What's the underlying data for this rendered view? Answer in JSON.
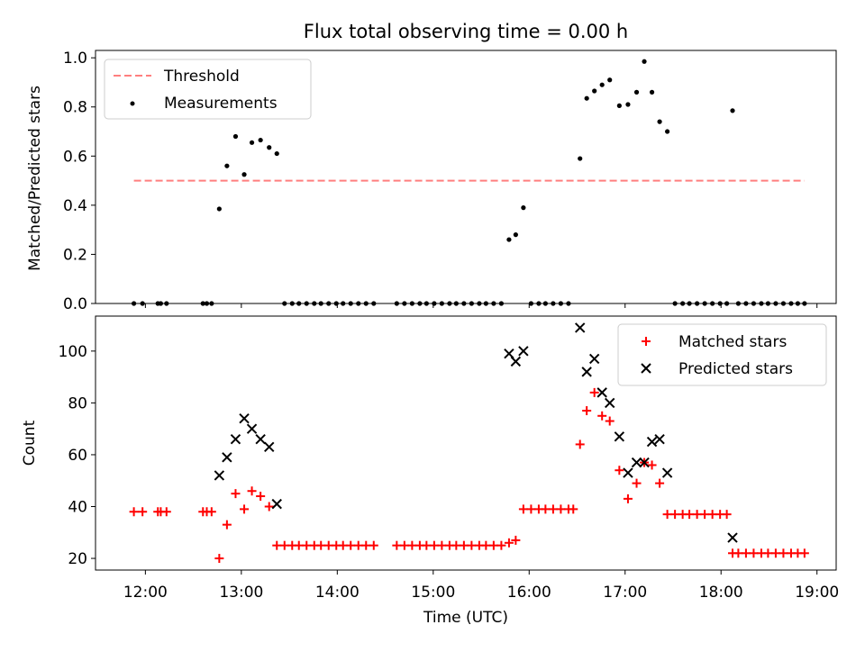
{
  "chart_data": [
    {
      "type": "scatter",
      "title": "Flux total observing time = 0.00 h",
      "xlabel": "",
      "ylabel": "Matched/Predicted stars",
      "xlim": [
        11.48,
        19.2
      ],
      "ylim": [
        0,
        1.03
      ],
      "yticks": [
        0.0,
        0.2,
        0.4,
        0.6,
        0.8,
        1.0
      ],
      "ytick_labels": [
        "0.0",
        "0.2",
        "0.4",
        "0.6",
        "0.8",
        "1.0"
      ],
      "legend": {
        "placement": "upper-left",
        "entries": [
          "Threshold",
          "Measurements"
        ]
      },
      "colors": {
        "threshold": "#ff7f7f",
        "measurements": "#000000"
      },
      "threshold": {
        "name": "Threshold",
        "y": 0.5,
        "x_start": 11.88,
        "x_end": 18.87
      },
      "measurements": {
        "name": "Measurements",
        "points": [
          [
            11.88,
            0.0
          ],
          [
            11.97,
            0.0
          ],
          [
            12.13,
            0.0
          ],
          [
            12.16,
            0.0
          ],
          [
            12.22,
            0.0
          ],
          [
            12.6,
            0.0
          ],
          [
            12.64,
            0.0
          ],
          [
            12.69,
            0.0
          ],
          [
            12.77,
            0.385
          ],
          [
            12.85,
            0.56
          ],
          [
            12.94,
            0.68
          ],
          [
            13.03,
            0.525
          ],
          [
            13.11,
            0.655
          ],
          [
            13.2,
            0.665
          ],
          [
            13.29,
            0.635
          ],
          [
            13.37,
            0.61
          ],
          [
            13.45,
            0.0
          ],
          [
            13.53,
            0.0
          ],
          [
            13.6,
            0.0
          ],
          [
            13.68,
            0.0
          ],
          [
            13.76,
            0.0
          ],
          [
            13.83,
            0.0
          ],
          [
            13.91,
            0.0
          ],
          [
            13.99,
            0.0
          ],
          [
            14.06,
            0.0
          ],
          [
            14.14,
            0.0
          ],
          [
            14.22,
            0.0
          ],
          [
            14.3,
            0.0
          ],
          [
            14.38,
            0.0
          ],
          [
            14.62,
            0.0
          ],
          [
            14.7,
            0.0
          ],
          [
            14.78,
            0.0
          ],
          [
            14.86,
            0.0
          ],
          [
            14.93,
            0.0
          ],
          [
            15.01,
            0.0
          ],
          [
            15.09,
            0.0
          ],
          [
            15.17,
            0.0
          ],
          [
            15.24,
            0.0
          ],
          [
            15.32,
            0.0
          ],
          [
            15.4,
            0.0
          ],
          [
            15.48,
            0.0
          ],
          [
            15.55,
            0.0
          ],
          [
            15.63,
            0.0
          ],
          [
            15.71,
            0.0
          ],
          [
            15.79,
            0.26
          ],
          [
            15.86,
            0.28
          ],
          [
            15.94,
            0.39
          ],
          [
            16.02,
            0.0
          ],
          [
            16.1,
            0.0
          ],
          [
            16.17,
            0.0
          ],
          [
            16.25,
            0.0
          ],
          [
            16.33,
            0.0
          ],
          [
            16.41,
            0.0
          ],
          [
            16.53,
            0.59
          ],
          [
            16.6,
            0.835
          ],
          [
            16.68,
            0.865
          ],
          [
            16.76,
            0.89
          ],
          [
            16.84,
            0.91
          ],
          [
            16.94,
            0.805
          ],
          [
            17.03,
            0.81
          ],
          [
            17.12,
            0.86
          ],
          [
            17.2,
            0.985
          ],
          [
            17.28,
            0.86
          ],
          [
            17.36,
            0.74
          ],
          [
            17.44,
            0.7
          ],
          [
            17.52,
            0.0
          ],
          [
            17.6,
            0.0
          ],
          [
            17.67,
            0.0
          ],
          [
            17.75,
            0.0
          ],
          [
            17.83,
            0.0
          ],
          [
            17.91,
            0.0
          ],
          [
            17.99,
            0.0
          ],
          [
            18.06,
            0.0
          ],
          [
            18.12,
            0.785
          ],
          [
            18.18,
            0.0
          ],
          [
            18.26,
            0.0
          ],
          [
            18.34,
            0.0
          ],
          [
            18.42,
            0.0
          ],
          [
            18.49,
            0.0
          ],
          [
            18.57,
            0.0
          ],
          [
            18.65,
            0.0
          ],
          [
            18.73,
            0.0
          ],
          [
            18.8,
            0.0
          ],
          [
            18.87,
            0.0
          ]
        ]
      }
    },
    {
      "type": "scatter",
      "title": "",
      "xlabel": "Time (UTC)",
      "ylabel": "Count",
      "xlim": [
        11.48,
        19.2
      ],
      "ylim": [
        15.5,
        113.5
      ],
      "xticks": [
        12,
        13,
        14,
        15,
        16,
        17,
        18,
        19
      ],
      "xtick_labels": [
        "12:00",
        "13:00",
        "14:00",
        "15:00",
        "16:00",
        "17:00",
        "18:00",
        "19:00"
      ],
      "yticks": [
        20,
        40,
        60,
        80,
        100
      ],
      "ytick_labels": [
        "20",
        "40",
        "60",
        "80",
        "100"
      ],
      "legend": {
        "placement": "upper-right",
        "entries": [
          "Matched stars",
          "Predicted stars"
        ]
      },
      "colors": {
        "matched": "#ff0000",
        "predicted": "#000000"
      },
      "series": [
        {
          "name": "Matched stars",
          "marker": "plus",
          "points": [
            [
              11.88,
              38
            ],
            [
              11.97,
              38
            ],
            [
              12.13,
              38
            ],
            [
              12.16,
              38
            ],
            [
              12.22,
              38
            ],
            [
              12.6,
              38
            ],
            [
              12.64,
              38
            ],
            [
              12.69,
              38
            ],
            [
              12.77,
              20
            ],
            [
              12.85,
              33
            ],
            [
              12.94,
              45
            ],
            [
              13.03,
              39
            ],
            [
              13.11,
              46
            ],
            [
              13.2,
              44
            ],
            [
              13.29,
              40
            ],
            [
              13.37,
              25
            ],
            [
              13.45,
              25
            ],
            [
              13.53,
              25
            ],
            [
              13.6,
              25
            ],
            [
              13.68,
              25
            ],
            [
              13.76,
              25
            ],
            [
              13.83,
              25
            ],
            [
              13.91,
              25
            ],
            [
              13.99,
              25
            ],
            [
              14.06,
              25
            ],
            [
              14.14,
              25
            ],
            [
              14.22,
              25
            ],
            [
              14.3,
              25
            ],
            [
              14.38,
              25
            ],
            [
              14.62,
              25
            ],
            [
              14.7,
              25
            ],
            [
              14.78,
              25
            ],
            [
              14.86,
              25
            ],
            [
              14.93,
              25
            ],
            [
              15.01,
              25
            ],
            [
              15.09,
              25
            ],
            [
              15.17,
              25
            ],
            [
              15.24,
              25
            ],
            [
              15.32,
              25
            ],
            [
              15.4,
              25
            ],
            [
              15.48,
              25
            ],
            [
              15.55,
              25
            ],
            [
              15.63,
              25
            ],
            [
              15.71,
              25
            ],
            [
              15.79,
              26
            ],
            [
              15.86,
              27
            ],
            [
              15.94,
              39
            ],
            [
              16.02,
              39
            ],
            [
              16.1,
              39
            ],
            [
              16.17,
              39
            ],
            [
              16.25,
              39
            ],
            [
              16.33,
              39
            ],
            [
              16.41,
              39
            ],
            [
              16.46,
              39
            ],
            [
              16.53,
              64
            ],
            [
              16.6,
              77
            ],
            [
              16.68,
              84
            ],
            [
              16.76,
              75
            ],
            [
              16.84,
              73
            ],
            [
              16.94,
              54
            ],
            [
              17.03,
              43
            ],
            [
              17.12,
              49
            ],
            [
              17.2,
              57
            ],
            [
              17.28,
              56
            ],
            [
              17.36,
              49
            ],
            [
              17.44,
              37
            ],
            [
              17.52,
              37
            ],
            [
              17.6,
              37
            ],
            [
              17.67,
              37
            ],
            [
              17.75,
              37
            ],
            [
              17.83,
              37
            ],
            [
              17.91,
              37
            ],
            [
              17.99,
              37
            ],
            [
              18.06,
              37
            ],
            [
              18.12,
              22
            ],
            [
              18.18,
              22
            ],
            [
              18.26,
              22
            ],
            [
              18.34,
              22
            ],
            [
              18.42,
              22
            ],
            [
              18.49,
              22
            ],
            [
              18.57,
              22
            ],
            [
              18.65,
              22
            ],
            [
              18.73,
              22
            ],
            [
              18.8,
              22
            ],
            [
              18.87,
              22
            ]
          ]
        },
        {
          "name": "Predicted stars",
          "marker": "x",
          "points": [
            [
              12.77,
              52
            ],
            [
              12.85,
              59
            ],
            [
              12.94,
              66
            ],
            [
              13.03,
              74
            ],
            [
              13.11,
              70
            ],
            [
              13.2,
              66
            ],
            [
              13.29,
              63
            ],
            [
              13.37,
              41
            ],
            [
              15.79,
              99
            ],
            [
              15.86,
              96
            ],
            [
              15.94,
              100
            ],
            [
              16.53,
              109
            ],
            [
              16.6,
              92
            ],
            [
              16.68,
              97
            ],
            [
              16.76,
              84
            ],
            [
              16.84,
              80
            ],
            [
              16.94,
              67
            ],
            [
              17.03,
              53
            ],
            [
              17.12,
              57
            ],
            [
              17.2,
              57
            ],
            [
              17.28,
              65
            ],
            [
              17.36,
              66
            ],
            [
              17.44,
              53
            ],
            [
              18.12,
              28
            ]
          ]
        }
      ]
    }
  ]
}
